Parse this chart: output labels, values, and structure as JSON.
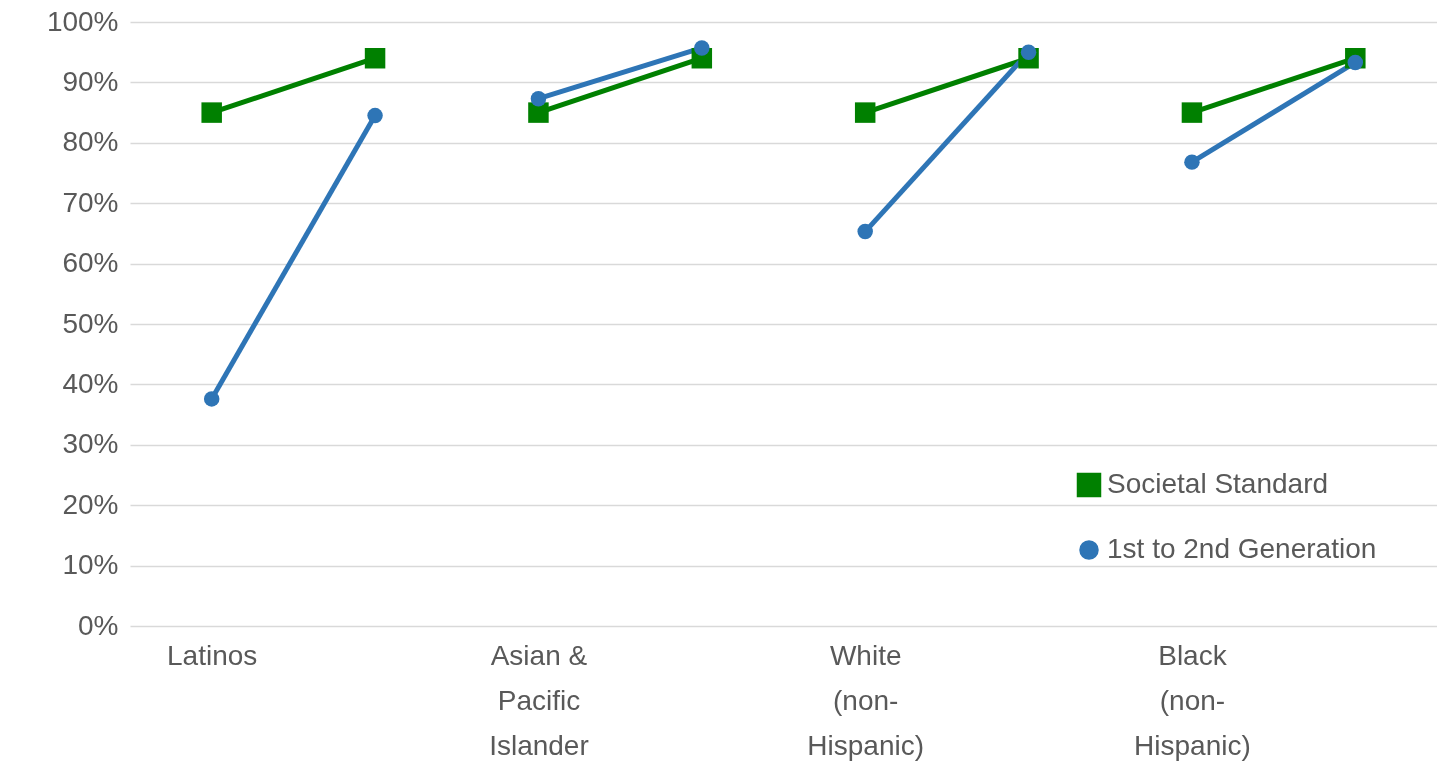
{
  "chart_data": {
    "type": "line",
    "categories": [
      "Latinos",
      null,
      "Asian & Pacific Islander",
      null,
      "White (non-Hispanic)",
      null,
      "Black (non-Hispanic)",
      null
    ],
    "series": [
      {
        "name": "Societal Standard",
        "color": "#008000",
        "marker": "square",
        "values": [
          85,
          94,
          85,
          94,
          85,
          94,
          85,
          94
        ]
      },
      {
        "name": "1st to 2nd Generation",
        "color": "#2e75b6",
        "marker": "circle",
        "values": [
          37.6,
          84.5,
          87.3,
          95.7,
          65.3,
          95.0,
          76.8,
          93.3
        ]
      }
    ],
    "ylim": [
      0,
      100
    ],
    "yticks": [
      {
        "value": 0,
        "label": "0%"
      },
      {
        "value": 10,
        "label": "10%"
      },
      {
        "value": 20,
        "label": "20%"
      },
      {
        "value": 30,
        "label": "30%"
      },
      {
        "value": 40,
        "label": "40%"
      },
      {
        "value": 50,
        "label": "50%"
      },
      {
        "value": 60,
        "label": "60%"
      },
      {
        "value": 70,
        "label": "70%"
      },
      {
        "value": 80,
        "label": "80%"
      },
      {
        "value": 90,
        "label": "90%"
      },
      {
        "value": 100,
        "label": "100%"
      }
    ],
    "grid": "y",
    "legend": "bottom right"
  }
}
